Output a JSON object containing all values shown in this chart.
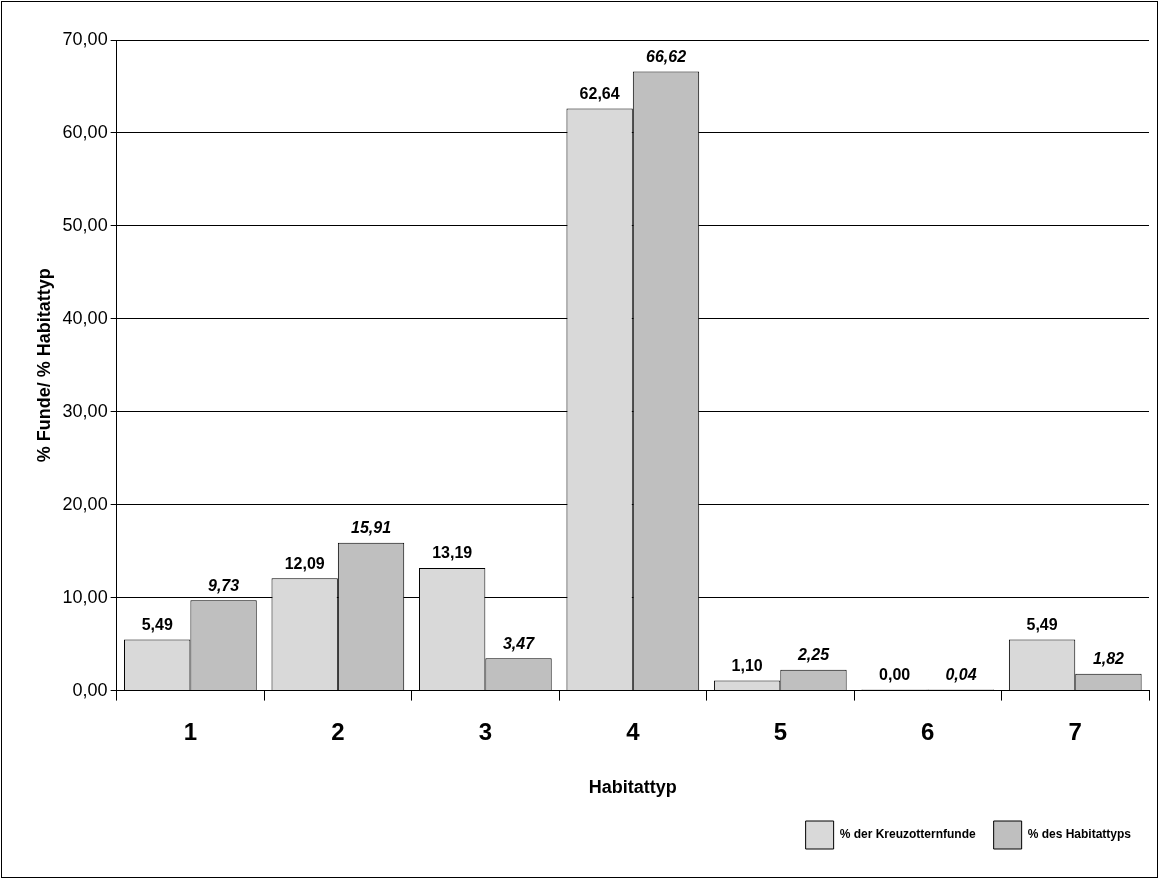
{
  "chart_data": {
    "type": "bar",
    "xlabel": "Habitattyp",
    "ylabel": "% Funde/ % Habitattyp",
    "categories": [
      "1",
      "2",
      "3",
      "4",
      "5",
      "6",
      "7"
    ],
    "series": [
      {
        "name": "% der Kreuzotternfunde",
        "color": "#d9d9d9",
        "values": [
          5.49,
          12.09,
          13.19,
          62.64,
          1.1,
          0.0,
          5.49
        ],
        "value_labels": [
          "5,49",
          "12,09",
          "13,19",
          "62,64",
          "1,10",
          "0,00",
          "5,49"
        ]
      },
      {
        "name": "% des Habitattyps",
        "color": "#bfbfbf",
        "values": [
          9.73,
          15.91,
          3.47,
          66.62,
          2.25,
          0.04,
          1.82
        ],
        "value_labels": [
          "9,73",
          "15,91",
          "3,47",
          "66,62",
          "2,25",
          "0,04",
          "1,82"
        ]
      }
    ],
    "ylim": [
      0,
      70
    ],
    "yticks": [
      {
        "value": 0,
        "label": "0,00"
      },
      {
        "value": 10,
        "label": "10,00"
      },
      {
        "value": 20,
        "label": "20,00"
      },
      {
        "value": 30,
        "label": "30,00"
      },
      {
        "value": 40,
        "label": "40,00"
      },
      {
        "value": 50,
        "label": "50,00"
      },
      {
        "value": 60,
        "label": "60,00"
      },
      {
        "value": 70,
        "label": "70,00"
      }
    ],
    "grid": "y",
    "legend": "bottom right"
  }
}
